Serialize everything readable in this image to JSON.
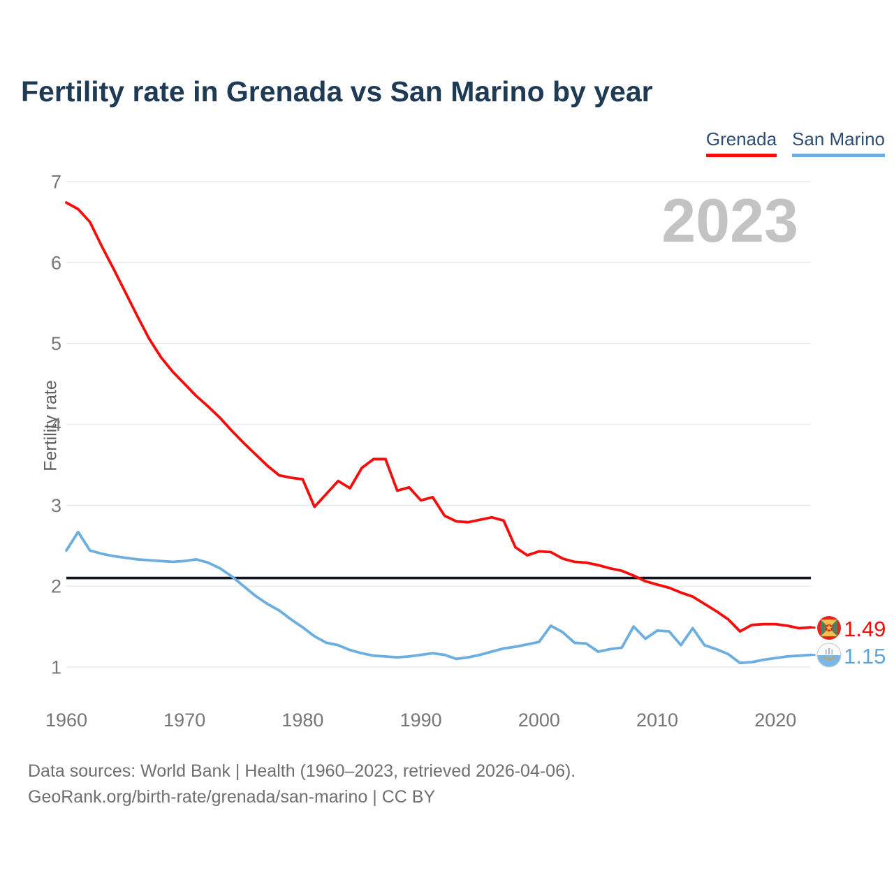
{
  "title": "Fertility rate in Grenada vs San Marino by year",
  "watermark": "2023",
  "legend": {
    "items": [
      {
        "label": "Grenada",
        "color": "#f40d0b"
      },
      {
        "label": "San Marino",
        "color": "#6caee0"
      }
    ]
  },
  "y_axis": {
    "label": "Fertility rate",
    "ticks": [
      1,
      2,
      3,
      4,
      5,
      6,
      7
    ]
  },
  "x_axis": {
    "ticks": [
      1960,
      1970,
      1980,
      1990,
      2000,
      2010,
      2020
    ]
  },
  "chart_data": {
    "type": "line",
    "title": "Fertility rate in Grenada vs San Marino by year",
    "xlabel": "",
    "ylabel": "Fertility rate",
    "x_first": 1960,
    "x_last": 2023,
    "ylim": [
      1,
      7
    ],
    "grid": true,
    "legend_position": "top-right",
    "series": [
      {
        "name": "Grenada",
        "color": "#f40d0b",
        "values": [
          6.74,
          6.66,
          6.5,
          6.2,
          5.92,
          5.63,
          5.34,
          5.06,
          4.83,
          4.65,
          4.5,
          4.35,
          4.22,
          4.08,
          3.92,
          3.77,
          3.63,
          3.49,
          3.37,
          3.34,
          3.32,
          2.98,
          3.14,
          3.3,
          3.21,
          3.46,
          3.57,
          3.57,
          3.18,
          3.22,
          3.06,
          3.1,
          2.87,
          2.8,
          2.79,
          2.82,
          2.85,
          2.81,
          2.48,
          2.38,
          2.43,
          2.42,
          2.34,
          2.3,
          2.29,
          2.26,
          2.22,
          2.19,
          2.13,
          2.06,
          2.02,
          1.98,
          1.92,
          1.87,
          1.78,
          1.69,
          1.59,
          1.44,
          1.52,
          1.53,
          1.53,
          1.51,
          1.48,
          1.49
        ]
      },
      {
        "name": "San Marino",
        "color": "#6caee0",
        "values": [
          2.44,
          2.67,
          2.44,
          2.4,
          2.37,
          2.35,
          2.33,
          2.32,
          2.31,
          2.3,
          2.31,
          2.33,
          2.29,
          2.22,
          2.12,
          2.0,
          1.88,
          1.78,
          1.7,
          1.59,
          1.49,
          1.38,
          1.3,
          1.27,
          1.21,
          1.17,
          1.14,
          1.13,
          1.12,
          1.13,
          1.15,
          1.17,
          1.15,
          1.1,
          1.12,
          1.15,
          1.19,
          1.23,
          1.25,
          1.28,
          1.31,
          1.51,
          1.43,
          1.3,
          1.29,
          1.19,
          1.22,
          1.24,
          1.5,
          1.35,
          1.45,
          1.44,
          1.27,
          1.48,
          1.27,
          1.22,
          1.16,
          1.05,
          1.06,
          1.09,
          1.11,
          1.13,
          1.14,
          1.15
        ]
      }
    ],
    "reference_line": {
      "value": 2.1,
      "color": "#0d1320"
    },
    "end_labels": [
      {
        "series": "Grenada",
        "text": "1.49"
      },
      {
        "series": "San Marino",
        "text": "1.15"
      }
    ]
  },
  "colors": {
    "title_text": "#1f3a54",
    "legend_text": "#2d4e74",
    "axis_text": "#767676",
    "gridline": "#e8e8e8",
    "watermark": "#c3c3c3",
    "background": "#ffffff"
  },
  "footer": {
    "line1": "Data sources: World Bank | Health (1960–2023, retrieved 2026-04-06).",
    "line2": "GeoRank.org/birth-rate/grenada/san-marino | CC BY"
  }
}
